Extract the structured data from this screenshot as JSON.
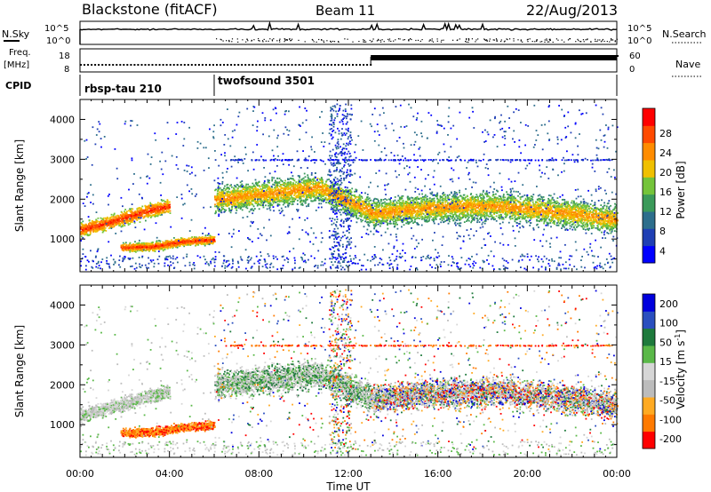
{
  "header": {
    "station": "Blackstone (fitACF)",
    "beam": "Beam 11",
    "date": "22/Aug/2013"
  },
  "left_labels": {
    "nsky": "N.Sky",
    "freq": "Freq.",
    "freq_unit": "[MHz]",
    "cpid": "CPID"
  },
  "right_labels": {
    "nsearch": "N.Search",
    "nave": "Nave"
  },
  "noise_panel": {
    "left_ticks": [
      "10^5",
      "10^0"
    ],
    "right_ticks": [
      "10^5",
      "10^0"
    ]
  },
  "freq_panel": {
    "left_ticks": [
      "18",
      "8"
    ],
    "right_ticks": [
      "60",
      "0"
    ]
  },
  "cpid_panel": {
    "modes": [
      {
        "label": "rbsp-tau 210",
        "start_hour": 0,
        "end_hour": 6
      },
      {
        "label": "twofsound 3501",
        "start_hour": 6,
        "end_hour": 24
      }
    ]
  },
  "colors": {
    "power_scale": [
      "#0000ff",
      "#1f3fb4",
      "#2d6e8c",
      "#3b9a5a",
      "#74c43a",
      "#f0c000",
      "#ff8c00",
      "#ff4a00",
      "#ff0000"
    ],
    "velocity_scale": [
      "#ff0000",
      "#ff7a00",
      "#ffaa22",
      "#bcbcbc",
      "#d6d6d6",
      "#5ab848",
      "#1e7a3c",
      "#2a4fbf",
      "#0000dd"
    ]
  },
  "chart_data": [
    {
      "type": "heatmap",
      "name": "power",
      "xlabel": "",
      "ylabel": "Slant Range [km]",
      "xlim": [
        0,
        24
      ],
      "ylim": [
        180,
        4500
      ],
      "yticks": [
        "1000",
        "2000",
        "3000",
        "4000"
      ],
      "colorbar": {
        "label": "Power [dB]",
        "ticks": [
          "4",
          "8",
          "12",
          "16",
          "20",
          "24",
          "28"
        ]
      },
      "scatter_bands": [
        {
          "start_hour": 0.0,
          "end_hour": 4.0,
          "center_km": [
            1250,
            1380,
            1550,
            1720,
            1850
          ],
          "width_km": 250
        },
        {
          "start_hour": 1.8,
          "end_hour": 6.0,
          "center_km": [
            800,
            820,
            950,
            1000
          ],
          "width_km": 150
        },
        {
          "start_hour": 6.0,
          "end_hour": 13.0,
          "center_km": [
            2000,
            2150,
            2300,
            1700
          ],
          "width_km": 500
        },
        {
          "start_hour": 13.0,
          "end_hour": 24.0,
          "center_km": [
            1650,
            1800,
            1850,
            1700,
            1500
          ],
          "width_km": 500
        }
      ]
    },
    {
      "type": "heatmap",
      "name": "velocity",
      "xlabel": "Time UT",
      "ylabel": "Slant Range [km]",
      "xlim": [
        0,
        24
      ],
      "ylim": [
        180,
        4500
      ],
      "xticks": [
        "00:00",
        "04:00",
        "08:00",
        "12:00",
        "16:00",
        "20:00",
        "00:00"
      ],
      "yticks": [
        "1000",
        "2000",
        "3000",
        "4000"
      ],
      "colorbar": {
        "label": "Velocity [m s^-1]",
        "ticks": [
          "200",
          "100",
          "50",
          "15",
          "-15",
          "-50",
          "-100",
          "-200"
        ]
      }
    }
  ]
}
